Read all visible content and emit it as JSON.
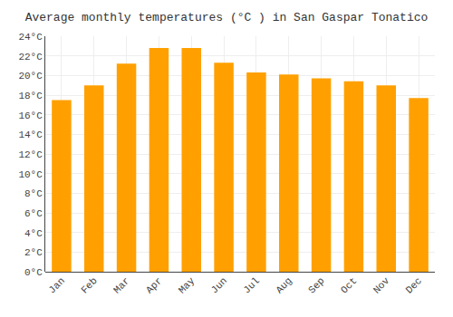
{
  "chart_data": {
    "type": "bar",
    "title": "Average monthly temperatures (°C ) in San Gaspar Tonatico",
    "categories": [
      "Jan",
      "Feb",
      "Mar",
      "Apr",
      "May",
      "Jun",
      "Jul",
      "Aug",
      "Sep",
      "Oct",
      "Nov",
      "Dec"
    ],
    "values": [
      17.5,
      19.0,
      21.2,
      22.8,
      22.8,
      21.3,
      20.3,
      20.1,
      19.7,
      19.4,
      19.0,
      17.7
    ],
    "color": "#FFA000",
    "ylim": [
      0,
      24
    ],
    "yticks": [
      {
        "value": 0,
        "label": "0°C"
      },
      {
        "value": 2,
        "label": "2°C"
      },
      {
        "value": 4,
        "label": "4°C"
      },
      {
        "value": 6,
        "label": "6°C"
      },
      {
        "value": 8,
        "label": "8°C"
      },
      {
        "value": 10,
        "label": "10°C"
      },
      {
        "value": 12,
        "label": "12°C"
      },
      {
        "value": 14,
        "label": "14°C"
      },
      {
        "value": 16,
        "label": "16°C"
      },
      {
        "value": 18,
        "label": "18°C"
      },
      {
        "value": 20,
        "label": "20°C"
      },
      {
        "value": 22,
        "label": "22°C"
      },
      {
        "value": 24,
        "label": "24°C"
      }
    ],
    "grid": true
  }
}
